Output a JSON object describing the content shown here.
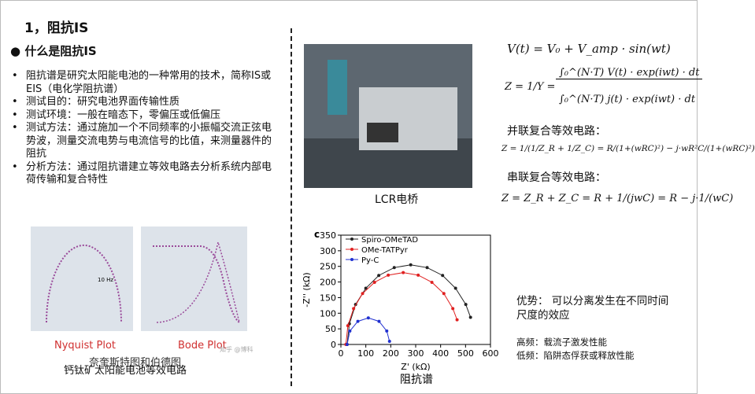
{
  "header": {
    "title": "1，阻抗IS"
  },
  "section": {
    "heading": "什么是阻抗IS",
    "bullets": [
      "阻抗谱是研究太阳能电池的一种常用的技术，简称IS或EIS（电化学阻抗谱）",
      "测试目的：研究电池界面传输性质",
      "测试环境：一般在暗态下，零偏压或低偏压",
      "测试方法：通过施加一个不同频率的小振幅交流正弦电势波，测量交流电势与电流信号的比值，来测量器件的阻抗",
      "分析方法：通过阻抗谱建立等效电路去分析系统内部电荷传输和复合特性"
    ]
  },
  "thumbs": {
    "nyquist_caption": "Nyquist Plot",
    "bode_caption": "Bode Plot",
    "freq_note": "10 Hz",
    "overlay_1": "奈奎斯特图和伯德图",
    "overlay_2": "钙钛矿太阳能电池等效电路",
    "watermark": "知乎 @博科"
  },
  "photo": {
    "caption": "LCR电桥"
  },
  "chart_data": {
    "type": "scatter",
    "panel_label": "c",
    "x_label": "Z' (kΩ)",
    "y_label": "-Z'' (kΩ)",
    "caption": "阻抗谱",
    "xlim": [
      0,
      600
    ],
    "ylim": [
      0,
      350
    ],
    "xticks": [
      0,
      100,
      200,
      300,
      400,
      500,
      600
    ],
    "yticks": [
      0,
      50,
      100,
      150,
      200,
      250,
      300,
      350
    ],
    "series": [
      {
        "name": "Spiro-OMeTAD",
        "color": "#222222",
        "x": [
          25,
          34,
          59,
          100,
          152,
          214,
          280,
          346,
          408,
          460,
          501,
          520
        ],
        "values": [
          0,
          66,
          128,
          180,
          221,
          246,
          255,
          246,
          221,
          180,
          128,
          87
        ]
      },
      {
        "name": "OMe-TATPyr",
        "color": "#e02020",
        "x": [
          20,
          28,
          51,
          87,
          135,
          190,
          250,
          310,
          365,
          413,
          449,
          466
        ],
        "values": [
          0,
          60,
          115,
          163,
          199,
          222,
          230,
          222,
          199,
          163,
          115,
          79
        ]
      },
      {
        "name": "Py-C",
        "color": "#2030d0",
        "x": [
          25,
          36,
          68,
          110,
          153,
          184,
          195
        ],
        "values": [
          0,
          43,
          74,
          85,
          74,
          43,
          10
        ]
      }
    ]
  },
  "formulas": {
    "f1": "V(t) = V₀ + V_amp · sin(wt)",
    "f2_left": "Z = 1/Y =",
    "f2_num": "∫₀^(N·T) V(t) · exp(iwt) · dt",
    "f2_den": "∫₀^(N·T) j(t) · exp(iwt) · dt",
    "parallel_label": "并联复合等效电路：",
    "f3": "Z = 1/(1/Z_R + 1/Z_C) = R/(1+(wRC)²) − j·wR²C/(1+(wRC)²)",
    "series_label": "串联复合等效电路：",
    "f4": "Z = Z_R + Z_C = R + 1/(jwC) = R − j·1/(wC)"
  },
  "notes": {
    "advantage": "优势：  可以分离发生在不同时间尺度的效应",
    "high": "高频：载流子激发性能",
    "low": "低频：陷阱态俘获或释放性能"
  }
}
